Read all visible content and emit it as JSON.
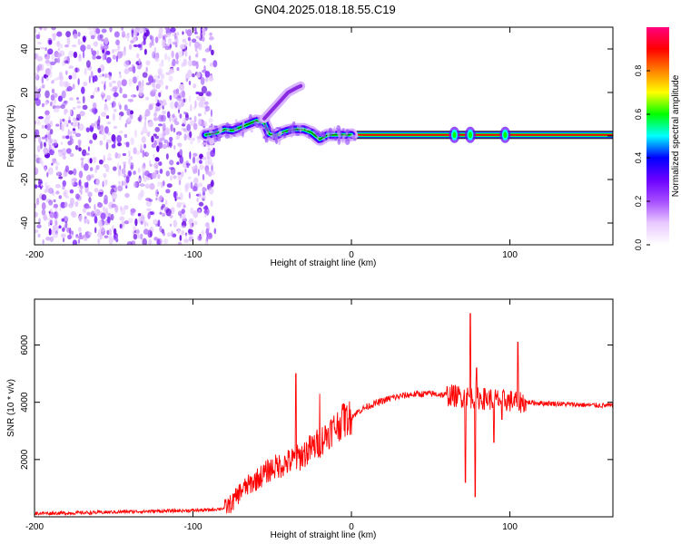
{
  "title": "GN04.2025.018.18.55.C19",
  "chart_data": [
    {
      "type": "heatmap",
      "xlabel": "Height of straight line (km)",
      "ylabel": "Frequency (Hz)",
      "xlim": [
        -200,
        165
      ],
      "ylim": [
        -50,
        50
      ],
      "x_ticks": [
        -200,
        -100,
        0,
        100
      ],
      "y_ticks": [
        -40,
        -20,
        0,
        20,
        40
      ],
      "grid": false,
      "colorbar": {
        "label": "Normalized spectral amplitude",
        "range": [
          0,
          1
        ],
        "ticks": [
          "0.0",
          "0.2",
          "0.4",
          "0.6",
          "0.8"
        ],
        "colors": [
          "#ffffff",
          "#e9c9ff",
          "#a64dff",
          "#6a00ff",
          "#0000ff",
          "#00ffff",
          "#00ff00",
          "#ffff00",
          "#ff8000",
          "#ff0000",
          "#ff0080"
        ]
      },
      "features": {
        "noise_region_x": [
          -200,
          -86
        ],
        "carrier_start_x": -90,
        "carrier_frequency_hz": 0.5,
        "distorted_track": [
          [
            -92,
            0.5
          ],
          [
            -85,
            1.5
          ],
          [
            -80,
            3
          ],
          [
            -75,
            2.5
          ],
          [
            -70,
            4
          ],
          [
            -65,
            5.5
          ],
          [
            -60,
            7
          ],
          [
            -55,
            6
          ],
          [
            -52,
            1
          ],
          [
            -48,
            0
          ],
          [
            -44,
            1.5
          ],
          [
            -40,
            2.5
          ],
          [
            -36,
            3
          ],
          [
            -30,
            3
          ],
          [
            -25,
            1.5
          ],
          [
            -20,
            -1.5
          ],
          [
            -15,
            0.5
          ],
          [
            -10,
            0.5
          ],
          [
            -5,
            0.5
          ],
          [
            0,
            0.5
          ]
        ],
        "upper_branch": [
          [
            -55,
            8
          ],
          [
            -50,
            12
          ],
          [
            -45,
            16
          ],
          [
            -40,
            20
          ],
          [
            -35,
            22
          ],
          [
            -32,
            23
          ]
        ],
        "bursts_x": [
          65,
          75,
          97
        ]
      }
    },
    {
      "type": "line",
      "xlabel": "Height of straight line (km)",
      "ylabel": "SNR (10 * v/v)",
      "xlim": [
        -200,
        165
      ],
      "ylim": [
        0,
        7600
      ],
      "x_ticks": [
        -200,
        -100,
        0,
        100
      ],
      "y_ticks": [
        2000,
        4000,
        6000
      ],
      "grid": false,
      "series": [
        {
          "color": "#ff0000",
          "x": [
            -200,
            -180,
            -160,
            -140,
            -120,
            -100,
            -90,
            -80,
            -75,
            -70,
            -60,
            -50,
            -40,
            -35,
            -30,
            -25,
            -20,
            -15,
            -10,
            -5,
            0,
            5,
            10,
            15,
            20,
            25,
            30,
            35,
            40,
            50,
            60,
            70,
            80,
            90,
            100,
            110,
            120,
            130,
            140,
            150,
            165
          ],
          "y": [
            120,
            130,
            150,
            180,
            200,
            220,
            240,
            300,
            500,
            900,
            1300,
            1700,
            1900,
            2000,
            2200,
            2400,
            2600,
            2900,
            3150,
            3350,
            3500,
            3700,
            3850,
            3950,
            4050,
            4150,
            4200,
            4250,
            4280,
            4300,
            4250,
            4200,
            4150,
            4100,
            4050,
            4000,
            3970,
            3950,
            3920,
            3900,
            3880
          ],
          "spikes": [
            [
              -35,
              5000
            ],
            [
              -20,
              4300
            ],
            [
              -5,
              3950
            ],
            [
              72,
              6700
            ],
            [
              75,
              7100
            ],
            [
              79,
              5200
            ],
            [
              95,
              3400
            ],
            [
              105,
              6100
            ]
          ],
          "dips": [
            [
              72,
              1200
            ],
            [
              78,
              700
            ],
            [
              90,
              2600
            ]
          ]
        }
      ]
    }
  ]
}
